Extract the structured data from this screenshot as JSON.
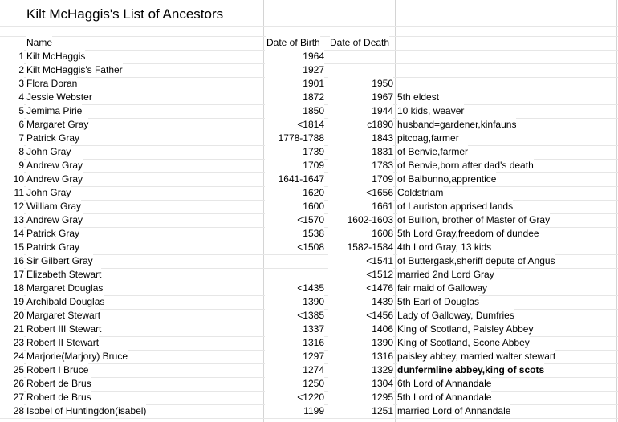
{
  "title": "Kilt McHaggis's List of Ancestors",
  "header": [
    "Name",
    "Date of Birth",
    "Date of Death"
  ],
  "rows": [
    [
      "1",
      "Kilt McHaggis",
      "1964",
      "",
      ""
    ],
    [
      "2",
      "Kilt McHaggis's Father",
      "1927",
      "",
      ""
    ],
    [
      "3",
      "Flora Doran",
      "1901",
      "1950",
      ""
    ],
    [
      "4",
      "Jessie Webster",
      "1872",
      "1967",
      "5th eldest"
    ],
    [
      "5",
      "Jemima Pirie",
      "1850",
      "1944",
      "10 kids, weaver"
    ],
    [
      "6",
      "Margaret Gray",
      "<1814",
      "c1890",
      "husband=gardener,kinfauns"
    ],
    [
      "7",
      "Patrick Gray",
      "1778-1788",
      "1843",
      "pitcoag,farmer"
    ],
    [
      "8",
      "John Gray",
      "1739",
      "1831",
      "of Benvie,farmer"
    ],
    [
      "9",
      "Andrew Gray",
      "1709",
      "1783",
      "of Benvie,born after dad's death"
    ],
    [
      "10",
      "Andrew Gray",
      "1641-1647",
      "1709",
      "of Balbunno,apprentice"
    ],
    [
      "11",
      "John Gray",
      "1620",
      "<1656",
      "Coldstriam"
    ],
    [
      "12",
      "William Gray",
      "1600",
      "1661",
      "of Lauriston,apprised lands"
    ],
    [
      "13",
      "Andrew Gray",
      "<1570",
      "1602-1603",
      "of Bullion, brother of Master of Gray"
    ],
    [
      "14",
      "Patrick Gray",
      "1538",
      "1608",
      "5th Lord Gray,freedom of dundee"
    ],
    [
      "15",
      "Patrick Gray",
      "<1508",
      "1582-1584",
      "4th Lord Gray, 13 kids"
    ],
    [
      "16",
      "Sir Gilbert Gray",
      "",
      "<1541",
      "of Buttergask,sheriff depute of Angus"
    ],
    [
      "17",
      "Elizabeth Stewart",
      "",
      "<1512",
      "married 2nd Lord Gray"
    ],
    [
      "18",
      "Margaret Douglas",
      "<1435",
      "<1476",
      "fair maid of Galloway"
    ],
    [
      "19",
      "Archibald Douglas",
      "1390",
      "1439",
      "5th Earl of Douglas"
    ],
    [
      "20",
      "Margaret Stewart",
      "<1385",
      "<1456",
      "Lady of Galloway, Dumfries"
    ],
    [
      "21",
      "Robert III Stewart",
      "1337",
      "1406",
      "King of Scotland, Paisley Abbey"
    ],
    [
      "23",
      "Robert II Stewart",
      "1316",
      "1390",
      "King of Scotland, Scone Abbey"
    ],
    [
      "24",
      "Marjorie(Marjory) Bruce",
      "1297",
      "1316",
      "paisley abbey, married walter stewart"
    ],
    [
      "25",
      "Robert I Bruce",
      "1274",
      "1329",
      "dunfermline abbey,king of scots"
    ],
    [
      "26",
      "Robert de Brus",
      "1250",
      "1304",
      "6th Lord of Annandale"
    ],
    [
      "27",
      "Robert de Brus",
      "<1220",
      "1295",
      "5th Lord of Annandale"
    ],
    [
      "28",
      "Isobel of Huntingdon(isabel)",
      "1199",
      "1251",
      "married Lord of Annandale"
    ]
  ]
}
